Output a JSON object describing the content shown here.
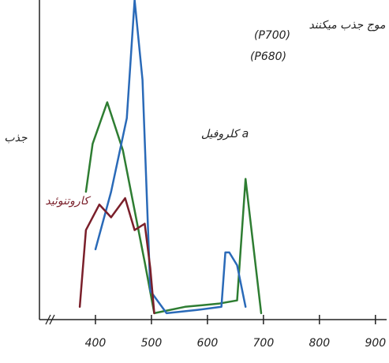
{
  "chart_data": {
    "type": "line",
    "ylabel": "جذب",
    "annotations": [
      "کلروفیل a",
      "کاروتنوئید",
      "(P700)",
      "(P680)",
      "موج جذب میکنند"
    ],
    "xlim": [
      300,
      920
    ],
    "xticks": [
      400,
      500,
      600,
      700,
      800,
      900
    ],
    "ylim": [
      0,
      100
    ],
    "series": [
      {
        "color": "#2e7d32",
        "x": [
          383,
          395,
          421,
          449,
          488,
          505,
          560,
          620,
          653,
          668,
          696
        ],
        "values": [
          40,
          55,
          68,
          53,
          18,
          2,
          4,
          5,
          6,
          44,
          2
        ]
      },
      {
        "color": "#2a6ab8",
        "x": [
          400,
          428,
          456,
          470,
          484,
          498,
          527,
          580,
          625,
          632,
          639,
          653,
          668
        ],
        "values": [
          22,
          40,
          63,
          100,
          75,
          9,
          2,
          3,
          4,
          21,
          21,
          17,
          4
        ]
      },
      {
        "color": "#7a1f2a",
        "x": [
          372,
          383,
          407,
          428,
          453,
          470,
          488,
          498,
          505
        ],
        "values": [
          4,
          28,
          36,
          32,
          38,
          28,
          30,
          16,
          2
        ]
      }
    ]
  }
}
